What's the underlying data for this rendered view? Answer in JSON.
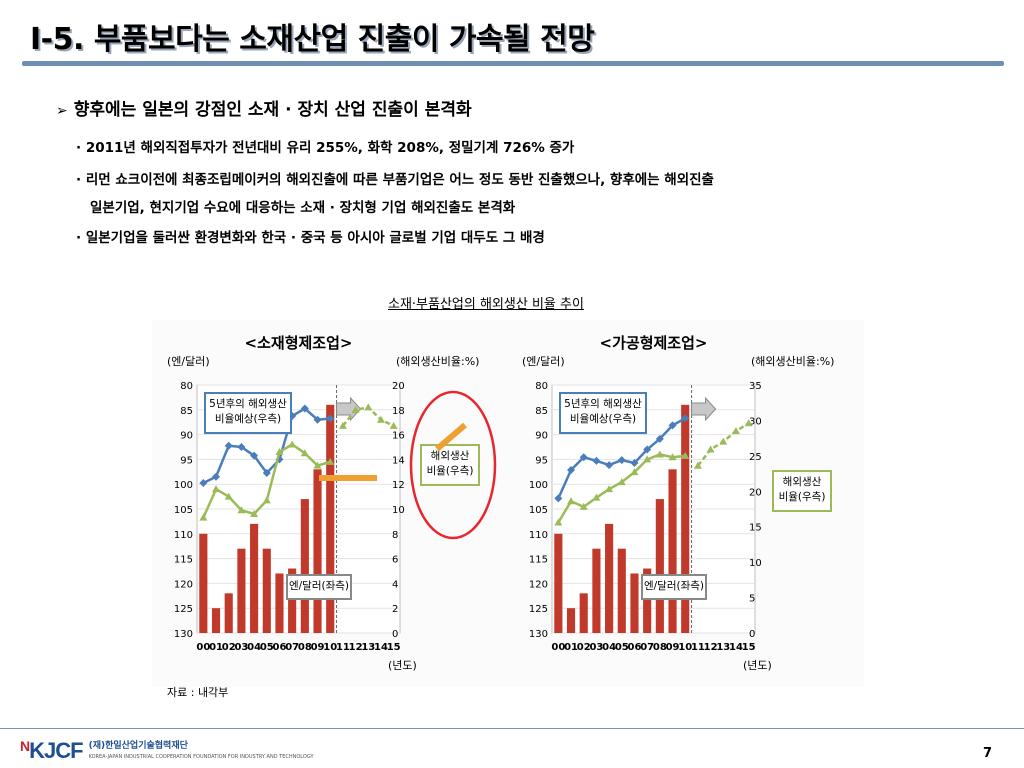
{
  "slide": {
    "title": "Ⅰ-5. 부품보다는 소재산업 진출이 가속될 전망",
    "headline": "향후에는 일본의 강점인 소재 · 장치 산업 진출이 본격화",
    "headline_icon": "arrow-bullet-icon",
    "bullets": [
      "· 2011년 해외직접투자가 전년대비 유리 255%, 화학 208%, 정밀기계 726% 증가",
      "· 리먼 쇼크이전에 최종조립메이커의 해외진출에 따른 부품기업은 어느 정도 동반 진출했으나, 향후에는 해외진출",
      "일본기업, 현지기업 수요에 대응하는 소재 · 장치형 기업 해외진출도 본격화",
      "· 일본기업을 둘러싼 환경변화와 한국 · 중국 등 아시아 글로벌 기업 대두도 그 배경"
    ],
    "chart_caption": "소재·부품산업의 해외생산 비율 추이",
    "source": "자료 : 내각부",
    "page_number": "7",
    "logo": {
      "mark": "KJCF",
      "name": "(재)한일산업기술협력재단",
      "sub": "KOREA-JAPAN INDUSTRIAL COOPERATION FOUNDATION FOR INDUSTRY AND TECHNOLOGY"
    },
    "colors": {
      "title_rule": "#6e8fb3",
      "bar": "#c0392b",
      "blue_line": "#4a7ebb",
      "green_line": "#9bbb59",
      "forecast_arrow": "#f0a030",
      "highlight_circle": "#e8262c"
    }
  },
  "chart_data": [
    {
      "type": "bar",
      "title": "<소재형제조업>",
      "left_axis_label": "(엔/달러)",
      "right_axis_label": "(해외생산비율:%)",
      "x_axis_unit": "(년도)",
      "categories": [
        "00",
        "01",
        "02",
        "03",
        "04",
        "05",
        "06",
        "07",
        "08",
        "09",
        "10",
        "11",
        "12",
        "13",
        "14",
        "15"
      ],
      "left_ylim": [
        130,
        80
      ],
      "left_ticks": [
        80,
        85,
        90,
        95,
        100,
        105,
        110,
        115,
        120,
        125,
        130
      ],
      "right_ylim": [
        0,
        20
      ],
      "right_ticks": [
        0,
        2,
        4,
        6,
        8,
        10,
        12,
        14,
        16,
        18,
        20
      ],
      "series": [
        {
          "name": "엔/달러(좌측)",
          "kind": "bar",
          "axis": "left",
          "values": [
            110,
            125,
            122,
            113,
            108,
            113,
            118,
            117,
            103,
            97,
            84,
            null,
            null,
            null,
            null,
            null
          ]
        },
        {
          "name": "해외생산비율(우측)",
          "kind": "line",
          "color": "#4a7ebb",
          "axis": "right",
          "values": [
            12.1,
            12.6,
            15.1,
            15.0,
            14.3,
            12.9,
            14.0,
            17.5,
            18.1,
            17.2,
            17.3,
            null,
            null,
            null,
            null,
            null
          ]
        },
        {
          "name": "해외생산비율(우측)",
          "kind": "line",
          "color": "#9bbb59",
          "axis": "right",
          "values": [
            9.3,
            11.6,
            11.0,
            9.9,
            9.6,
            10.7,
            14.6,
            15.2,
            14.5,
            13.5,
            13.8,
            null,
            null,
            null,
            null,
            null
          ]
        },
        {
          "name": "해외생산비율 전망",
          "kind": "forecast",
          "color": "#9bbb59",
          "axis": "right",
          "values": [
            null,
            null,
            null,
            null,
            null,
            null,
            null,
            null,
            null,
            null,
            null,
            16.7,
            18.0,
            18.2,
            17.2,
            16.7
          ]
        }
      ],
      "annotations": [
        "5년후의 해외생산 비율예상(우측)",
        "해외생산 비율(우측)",
        "엔/달러(좌측)"
      ]
    },
    {
      "type": "bar",
      "title": "<가공형제조업>",
      "left_axis_label": "(엔/달러)",
      "right_axis_label": "(해외생산비율:%)",
      "x_axis_unit": "(년도)",
      "categories": [
        "00",
        "01",
        "02",
        "03",
        "04",
        "05",
        "06",
        "07",
        "08",
        "09",
        "10",
        "11",
        "12",
        "13",
        "14",
        "15"
      ],
      "left_ylim": [
        130,
        80
      ],
      "left_ticks": [
        80,
        85,
        90,
        95,
        100,
        105,
        110,
        115,
        120,
        125,
        130
      ],
      "right_ylim": [
        0,
        35
      ],
      "right_ticks": [
        0,
        5,
        10,
        15,
        20,
        25,
        30,
        35
      ],
      "series": [
        {
          "name": "엔/달러(좌측)",
          "kind": "bar",
          "axis": "left",
          "values": [
            110,
            125,
            122,
            113,
            108,
            113,
            118,
            117,
            103,
            97,
            84,
            null,
            null,
            null,
            null,
            null
          ]
        },
        {
          "name": "해외생산비율(우측)",
          "kind": "line",
          "color": "#4a7ebb",
          "axis": "right",
          "values": [
            19,
            23,
            24.8,
            24.3,
            23.7,
            24.4,
            24.0,
            25.9,
            27.4,
            29.3,
            30.3,
            null,
            null,
            null,
            null,
            null
          ]
        },
        {
          "name": "해외생산비율(우측)",
          "kind": "line",
          "color": "#9bbb59",
          "axis": "right",
          "values": [
            15.6,
            18.6,
            17.8,
            19.1,
            20.3,
            21.3,
            22.7,
            24.5,
            25.2,
            24.8,
            25.0,
            null,
            null,
            null,
            null,
            null
          ]
        },
        {
          "name": "해외생산비율 전망",
          "kind": "forecast",
          "color": "#9bbb59",
          "axis": "right",
          "values": [
            null,
            null,
            null,
            null,
            null,
            null,
            null,
            null,
            null,
            null,
            null,
            23.6,
            25.9,
            27.0,
            28.5,
            29.6
          ]
        }
      ],
      "annotations": [
        "5년후의 해외생산 비율예상(우측)",
        "해외생산 비율(우측)",
        "엔/달러(좌측)"
      ]
    }
  ]
}
